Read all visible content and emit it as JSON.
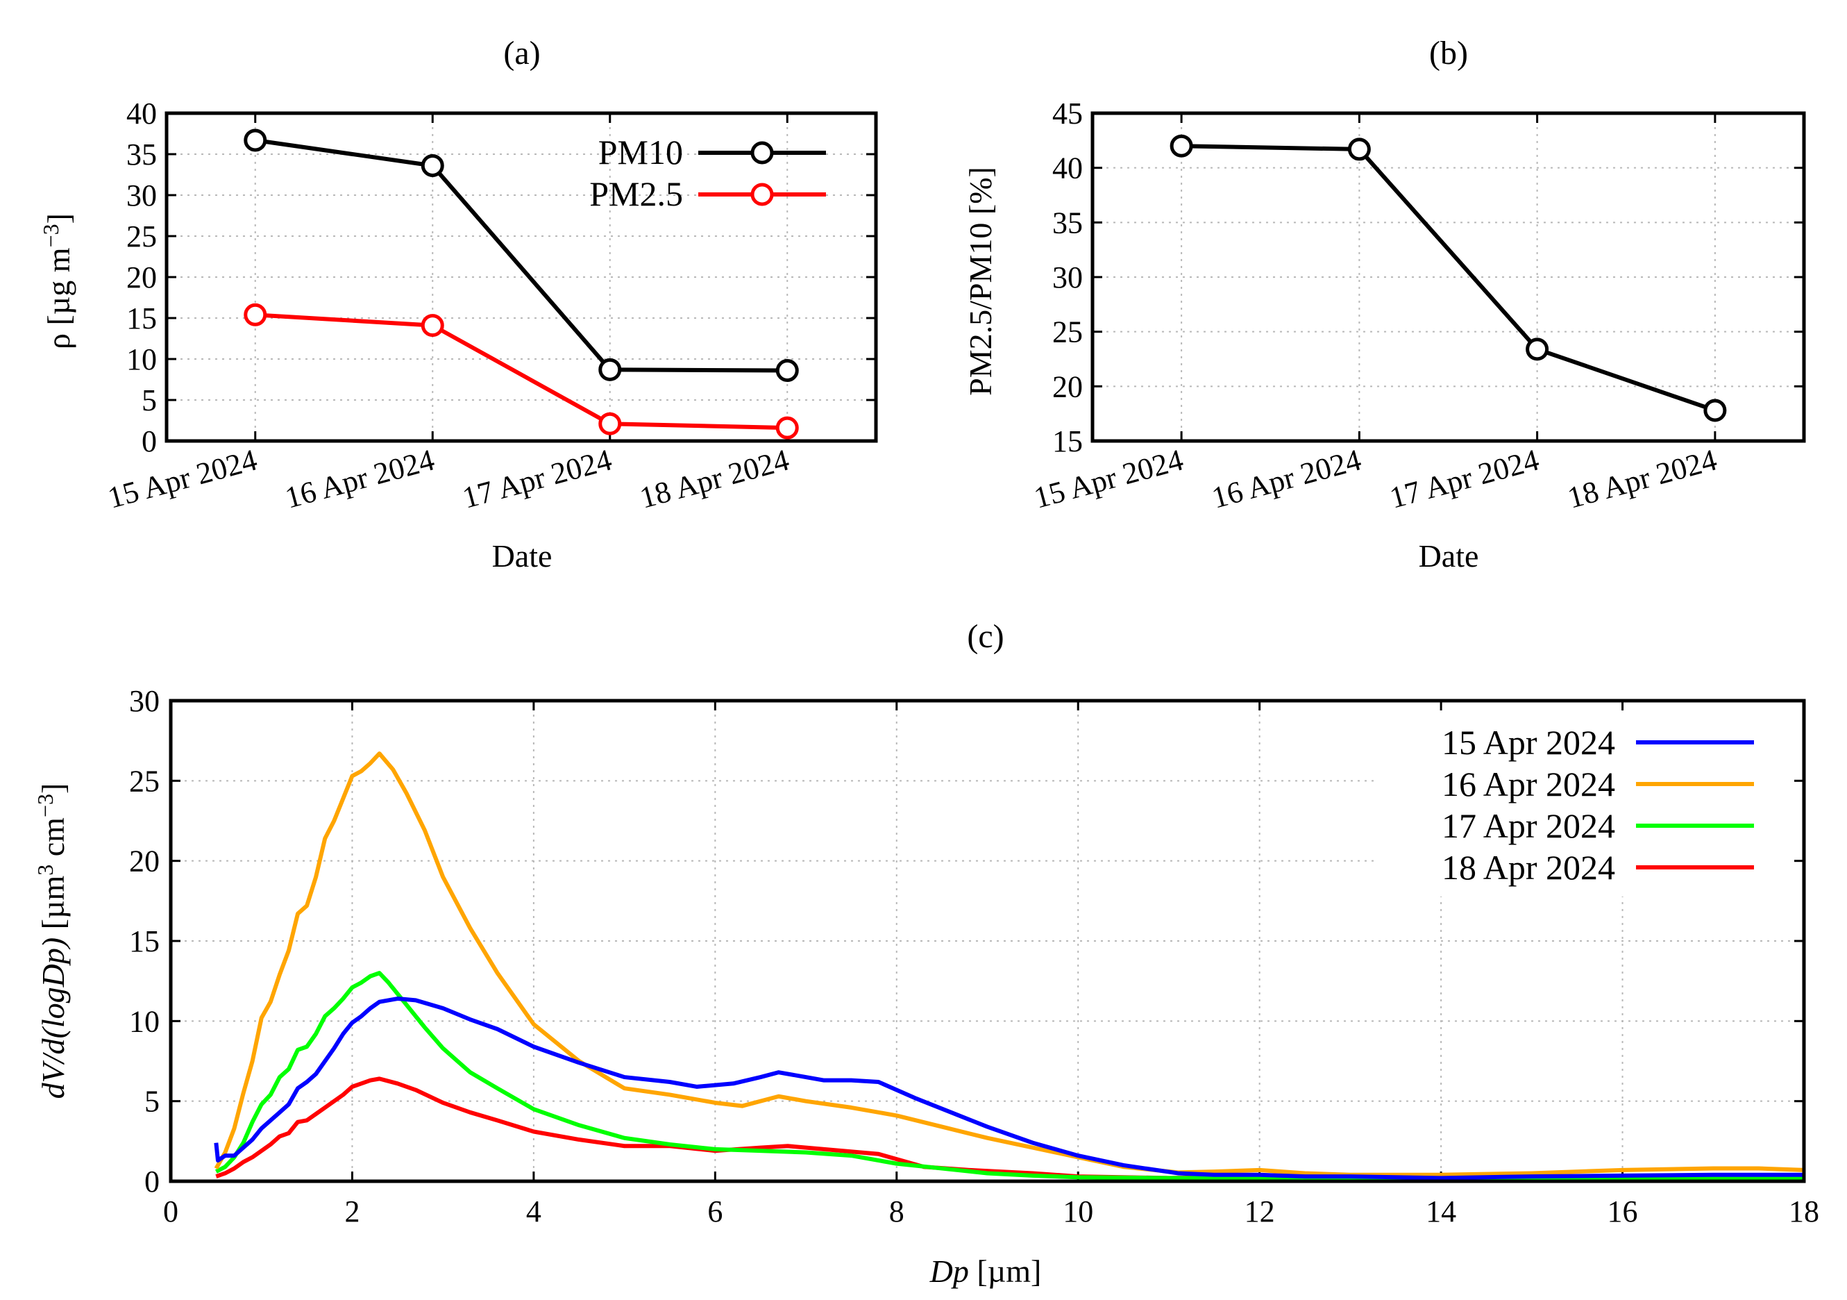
{
  "panels": {
    "a": {
      "title": "(a)",
      "xlabel": "Date",
      "ylabel_main": "ρ [µg m",
      "ylabel_sup": "−3",
      "ylabel_end": "]"
    },
    "b": {
      "title": "(b)",
      "xlabel": "Date",
      "ylabel": "PM2.5/PM10 [%]"
    },
    "c": {
      "title": "(c)",
      "xlabel_italic": "Dp",
      "xlabel_rest": " [µm]",
      "ylabel_italic": "dV/d(logDp)",
      "ylabel_rest": " [µm",
      "ylabel_sup1": "3",
      "ylabel_mid": " cm",
      "ylabel_sup2": "−3",
      "ylabel_end": "]"
    }
  },
  "chart_data": [
    {
      "id": "a",
      "type": "line",
      "title": "(a)",
      "xlabel": "Date",
      "ylabel": "ρ [µg m−3]",
      "categories": [
        "15 Apr 2024",
        "16 Apr 2024",
        "17 Apr 2024",
        "18 Apr 2024"
      ],
      "ylim": [
        0,
        40
      ],
      "yticks": [
        0,
        5,
        10,
        15,
        20,
        25,
        30,
        35,
        40
      ],
      "grid": true,
      "legend": "top-right",
      "series": [
        {
          "name": "PM10",
          "color": "#000000",
          "marker": "open-circle",
          "values": [
            36.7,
            33.6,
            8.7,
            8.6
          ]
        },
        {
          "name": "PM2.5",
          "color": "#ff0000",
          "marker": "open-circle",
          "values": [
            15.4,
            14.1,
            2.1,
            1.6
          ]
        }
      ]
    },
    {
      "id": "b",
      "type": "line",
      "title": "(b)",
      "xlabel": "Date",
      "ylabel": "PM2.5/PM10 [%]",
      "categories": [
        "15 Apr 2024",
        "16 Apr 2024",
        "17 Apr 2024",
        "18 Apr 2024"
      ],
      "ylim": [
        15,
        45
      ],
      "yticks": [
        15,
        20,
        25,
        30,
        35,
        40,
        45
      ],
      "grid": true,
      "series": [
        {
          "color": "#000000",
          "marker": "open-circle",
          "values": [
            42.0,
            41.7,
            23.4,
            17.8
          ]
        }
      ]
    },
    {
      "id": "c",
      "type": "line",
      "title": "(c)",
      "xlabel": "Dp [µm]",
      "ylabel": "dV/d(logDp) [µm3 cm−3]",
      "xlim": [
        0,
        18
      ],
      "xticks": [
        0,
        2,
        4,
        6,
        8,
        10,
        12,
        14,
        16,
        18
      ],
      "ylim": [
        0,
        30
      ],
      "yticks": [
        0,
        5,
        10,
        15,
        20,
        25,
        30
      ],
      "grid": true,
      "legend": "top-right",
      "series": [
        {
          "name": "15 Apr 2024",
          "color": "#0000ff",
          "points": [
            [
              0.5,
              2.4
            ],
            [
              0.52,
              1.3
            ],
            [
              0.6,
              1.6
            ],
            [
              0.7,
              1.6
            ],
            [
              0.8,
              2.1
            ],
            [
              0.9,
              2.6
            ],
            [
              1.0,
              3.3
            ],
            [
              1.1,
              3.8
            ],
            [
              1.2,
              4.3
            ],
            [
              1.3,
              4.8
            ],
            [
              1.4,
              5.8
            ],
            [
              1.5,
              6.2
            ],
            [
              1.6,
              6.7
            ],
            [
              1.7,
              7.5
            ],
            [
              1.8,
              8.3
            ],
            [
              1.9,
              9.2
            ],
            [
              2.0,
              9.9
            ],
            [
              2.1,
              10.3
            ],
            [
              2.2,
              10.8
            ],
            [
              2.3,
              11.2
            ],
            [
              2.5,
              11.4
            ],
            [
              2.7,
              11.3
            ],
            [
              3.0,
              10.8
            ],
            [
              3.3,
              10.1
            ],
            [
              3.6,
              9.5
            ],
            [
              4.0,
              8.4
            ],
            [
              4.5,
              7.4
            ],
            [
              5.0,
              6.5
            ],
            [
              5.5,
              6.2
            ],
            [
              5.8,
              5.9
            ],
            [
              6.2,
              6.1
            ],
            [
              6.5,
              6.5
            ],
            [
              6.7,
              6.8
            ],
            [
              7.0,
              6.5
            ],
            [
              7.2,
              6.3
            ],
            [
              7.5,
              6.3
            ],
            [
              7.8,
              6.2
            ],
            [
              8.2,
              5.2
            ],
            [
              8.6,
              4.3
            ],
            [
              9.0,
              3.4
            ],
            [
              9.5,
              2.4
            ],
            [
              10.0,
              1.6
            ],
            [
              10.5,
              1.0
            ],
            [
              11.1,
              0.5
            ],
            [
              11.5,
              0.4
            ],
            [
              12.0,
              0.4
            ],
            [
              12.5,
              0.3
            ],
            [
              13.0,
              0.3
            ],
            [
              14.0,
              0.2
            ],
            [
              15.0,
              0.3
            ],
            [
              16.0,
              0.35
            ],
            [
              17.0,
              0.4
            ],
            [
              18.0,
              0.4
            ]
          ]
        },
        {
          "name": "16 Apr 2024",
          "color": "#ffa500",
          "points": [
            [
              0.5,
              0.8
            ],
            [
              0.6,
              1.8
            ],
            [
              0.7,
              3.3
            ],
            [
              0.8,
              5.5
            ],
            [
              0.9,
              7.5
            ],
            [
              1.0,
              10.2
            ],
            [
              1.1,
              11.2
            ],
            [
              1.2,
              12.9
            ],
            [
              1.3,
              14.4
            ],
            [
              1.4,
              16.7
            ],
            [
              1.5,
              17.2
            ],
            [
              1.6,
              19.0
            ],
            [
              1.7,
              21.4
            ],
            [
              1.8,
              22.5
            ],
            [
              1.9,
              23.9
            ],
            [
              2.0,
              25.3
            ],
            [
              2.1,
              25.6
            ],
            [
              2.2,
              26.1
            ],
            [
              2.3,
              26.7
            ],
            [
              2.45,
              25.7
            ],
            [
              2.6,
              24.2
            ],
            [
              2.8,
              21.9
            ],
            [
              3.0,
              19.0
            ],
            [
              3.3,
              15.8
            ],
            [
              3.6,
              13.0
            ],
            [
              4.0,
              9.8
            ],
            [
              4.5,
              7.5
            ],
            [
              5.0,
              5.8
            ],
            [
              5.5,
              5.4
            ],
            [
              6.0,
              4.9
            ],
            [
              6.3,
              4.7
            ],
            [
              6.7,
              5.3
            ],
            [
              7.0,
              5.0
            ],
            [
              7.5,
              4.6
            ],
            [
              8.0,
              4.1
            ],
            [
              8.5,
              3.4
            ],
            [
              9.0,
              2.7
            ],
            [
              9.5,
              2.1
            ],
            [
              10.0,
              1.5
            ],
            [
              10.5,
              0.9
            ],
            [
              11.1,
              0.55
            ],
            [
              11.5,
              0.6
            ],
            [
              12.0,
              0.7
            ],
            [
              12.5,
              0.5
            ],
            [
              13.0,
              0.4
            ],
            [
              14.0,
              0.4
            ],
            [
              15.0,
              0.5
            ],
            [
              16.0,
              0.7
            ],
            [
              17.0,
              0.8
            ],
            [
              17.5,
              0.8
            ],
            [
              18.0,
              0.7
            ]
          ]
        },
        {
          "name": "17 Apr 2024",
          "color": "#00ff00",
          "points": [
            [
              0.5,
              0.6
            ],
            [
              0.6,
              0.9
            ],
            [
              0.7,
              1.5
            ],
            [
              0.8,
              2.4
            ],
            [
              0.9,
              3.7
            ],
            [
              1.0,
              4.8
            ],
            [
              1.1,
              5.4
            ],
            [
              1.2,
              6.5
            ],
            [
              1.3,
              7.0
            ],
            [
              1.4,
              8.2
            ],
            [
              1.5,
              8.4
            ],
            [
              1.6,
              9.2
            ],
            [
              1.7,
              10.3
            ],
            [
              1.8,
              10.8
            ],
            [
              1.9,
              11.4
            ],
            [
              2.0,
              12.1
            ],
            [
              2.1,
              12.4
            ],
            [
              2.2,
              12.8
            ],
            [
              2.3,
              13.0
            ],
            [
              2.4,
              12.4
            ],
            [
              2.6,
              11.0
            ],
            [
              2.8,
              9.6
            ],
            [
              3.0,
              8.3
            ],
            [
              3.3,
              6.8
            ],
            [
              3.6,
              5.8
            ],
            [
              4.0,
              4.5
            ],
            [
              4.5,
              3.5
            ],
            [
              5.0,
              2.7
            ],
            [
              5.5,
              2.3
            ],
            [
              6.0,
              2.0
            ],
            [
              6.5,
              1.9
            ],
            [
              7.0,
              1.8
            ],
            [
              7.5,
              1.6
            ],
            [
              8.0,
              1.1
            ],
            [
              8.5,
              0.8
            ],
            [
              9.0,
              0.5
            ],
            [
              9.5,
              0.35
            ],
            [
              10.0,
              0.25
            ],
            [
              11.0,
              0.2
            ],
            [
              12.0,
              0.2
            ],
            [
              13.0,
              0.15
            ],
            [
              14.0,
              0.15
            ],
            [
              15.0,
              0.15
            ],
            [
              16.0,
              0.2
            ],
            [
              17.0,
              0.2
            ],
            [
              18.0,
              0.2
            ]
          ]
        },
        {
          "name": "18 Apr 2024",
          "color": "#ff0000",
          "points": [
            [
              0.5,
              0.3
            ],
            [
              0.6,
              0.5
            ],
            [
              0.7,
              0.8
            ],
            [
              0.8,
              1.2
            ],
            [
              0.9,
              1.5
            ],
            [
              1.0,
              1.9
            ],
            [
              1.1,
              2.3
            ],
            [
              1.2,
              2.8
            ],
            [
              1.3,
              3.0
            ],
            [
              1.4,
              3.7
            ],
            [
              1.5,
              3.8
            ],
            [
              1.6,
              4.2
            ],
            [
              1.7,
              4.6
            ],
            [
              1.8,
              5.0
            ],
            [
              1.9,
              5.4
            ],
            [
              2.0,
              5.9
            ],
            [
              2.1,
              6.1
            ],
            [
              2.2,
              6.3
            ],
            [
              2.3,
              6.4
            ],
            [
              2.5,
              6.1
            ],
            [
              2.7,
              5.7
            ],
            [
              3.0,
              4.9
            ],
            [
              3.3,
              4.3
            ],
            [
              3.6,
              3.8
            ],
            [
              4.0,
              3.1
            ],
            [
              4.5,
              2.6
            ],
            [
              5.0,
              2.2
            ],
            [
              5.5,
              2.2
            ],
            [
              6.0,
              1.9
            ],
            [
              6.5,
              2.1
            ],
            [
              6.8,
              2.2
            ],
            [
              7.2,
              2.0
            ],
            [
              7.8,
              1.7
            ],
            [
              8.3,
              0.9
            ],
            [
              8.8,
              0.7
            ],
            [
              9.5,
              0.5
            ],
            [
              10.0,
              0.3
            ],
            [
              11.0,
              0.2
            ],
            [
              12.0,
              0.3
            ],
            [
              13.0,
              0.15
            ],
            [
              14.0,
              0.15
            ],
            [
              15.0,
              0.15
            ],
            [
              16.0,
              0.2
            ],
            [
              17.0,
              0.25
            ],
            [
              18.0,
              0.25
            ]
          ]
        }
      ]
    }
  ]
}
